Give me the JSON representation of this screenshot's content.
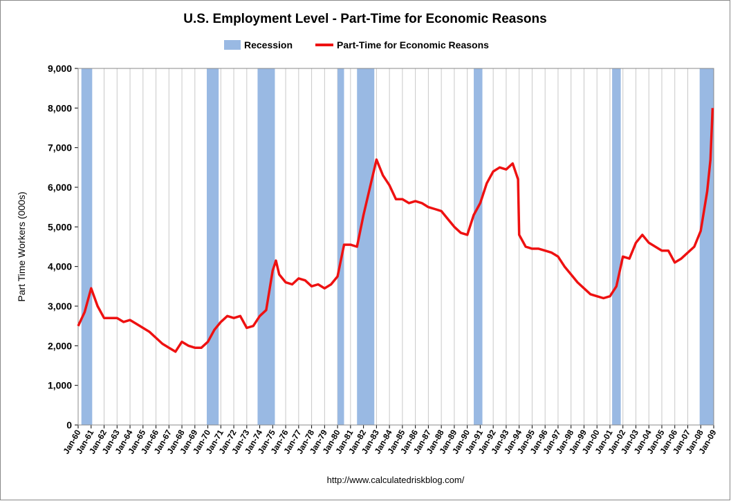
{
  "chart_data": {
    "type": "line",
    "title": "U.S. Employment Level - Part-Time for Economic Reasons",
    "y_label": "Part Time Workers (000s)",
    "source": "http://www.calculatedriskblog.com/",
    "recession_name": "Recession",
    "recession_color": "#99b9e3",
    "recessions": [
      {
        "start": "Apr-60",
        "end": "Feb-61"
      },
      {
        "start": "Dec-69",
        "end": "Nov-70"
      },
      {
        "start": "Nov-73",
        "end": "Mar-75"
      },
      {
        "start": "Jan-80",
        "end": "Jul-80"
      },
      {
        "start": "Jul-81",
        "end": "Nov-82"
      },
      {
        "start": "Jul-90",
        "end": "Mar-91"
      },
      {
        "start": "Mar-01",
        "end": "Nov-01"
      },
      {
        "start": "Dec-07",
        "end": "Jan-09"
      }
    ],
    "x": [
      "Jan-60",
      "Jul-60",
      "Jan-61",
      "Jul-61",
      "Jan-62",
      "Jul-62",
      "Jan-63",
      "Jul-63",
      "Jan-64",
      "Jul-64",
      "Jan-65",
      "Jul-65",
      "Jan-66",
      "Jul-66",
      "Jan-67",
      "Jul-67",
      "Jan-68",
      "Jul-68",
      "Jan-69",
      "Jul-69",
      "Jan-70",
      "Jul-70",
      "Jan-71",
      "Jul-71",
      "Jan-72",
      "Jul-72",
      "Jan-73",
      "Jul-73",
      "Jan-74",
      "Jul-74",
      "Jan-75",
      "Apr-75",
      "Jul-75",
      "Jan-76",
      "Jul-76",
      "Jan-77",
      "Jul-77",
      "Jan-78",
      "Jul-78",
      "Jan-79",
      "Jul-79",
      "Jan-80",
      "Jul-80",
      "Jan-81",
      "Jul-81",
      "Jan-82",
      "Jul-82",
      "Jan-83",
      "Jul-83",
      "Jan-84",
      "Jul-84",
      "Jan-85",
      "Jul-85",
      "Jan-86",
      "Jul-86",
      "Jan-87",
      "Jul-87",
      "Jan-88",
      "Jul-88",
      "Jan-89",
      "Jul-89",
      "Jan-90",
      "Jul-90",
      "Jan-91",
      "Jul-91",
      "Jan-92",
      "Jul-92",
      "Jan-93",
      "Jul-93",
      "Dec-93",
      "Jan-94",
      "Jul-94",
      "Jan-95",
      "Jul-95",
      "Jan-96",
      "Jul-96",
      "Jan-97",
      "Jul-97",
      "Jan-98",
      "Jul-98",
      "Jan-99",
      "Jul-99",
      "Jan-00",
      "Jul-00",
      "Jan-01",
      "Jul-01",
      "Jan-02",
      "Jul-02",
      "Jan-03",
      "Jul-03",
      "Jan-04",
      "Jul-04",
      "Jan-05",
      "Jul-05",
      "Jan-06",
      "Jul-06",
      "Jan-07",
      "Jul-07",
      "Jan-08",
      "Jul-08",
      "Oct-08",
      "Dec-08"
    ],
    "series": [
      {
        "name": "Part-Time for Economic Reasons",
        "color": "#ee1111",
        "values": [
          2500,
          2850,
          3450,
          3000,
          2700,
          2700,
          2700,
          2600,
          2650,
          2550,
          2450,
          2350,
          2200,
          2050,
          1950,
          1850,
          2100,
          2000,
          1950,
          1950,
          2100,
          2400,
          2600,
          2750,
          2700,
          2750,
          2450,
          2500,
          2750,
          2900,
          3900,
          4150,
          3800,
          3600,
          3550,
          3700,
          3650,
          3500,
          3550,
          3450,
          3550,
          3750,
          4550,
          4550,
          4500,
          5300,
          6000,
          6700,
          6300,
          6050,
          5700,
          5700,
          5600,
          5650,
          5600,
          5500,
          5450,
          5400,
          5200,
          5000,
          4850,
          4800,
          5300,
          5600,
          6100,
          6400,
          6500,
          6450,
          6600,
          6200,
          4800,
          4500,
          4450,
          4450,
          4400,
          4350,
          4250,
          4000,
          3800,
          3600,
          3450,
          3300,
          3250,
          3200,
          3250,
          3500,
          4250,
          4200,
          4600,
          4800,
          4600,
          4500,
          4400,
          4400,
          4100,
          4200,
          4350,
          4500,
          4900,
          5900,
          6700,
          8000
        ]
      }
    ],
    "xticks": [
      "Jan-60",
      "Jan-61",
      "Jan-62",
      "Jan-63",
      "Jan-64",
      "Jan-65",
      "Jan-66",
      "Jan-67",
      "Jan-68",
      "Jan-69",
      "Jan-70",
      "Jan-71",
      "Jan-72",
      "Jan-73",
      "Jan-74",
      "Jan-75",
      "Jan-76",
      "Jan-77",
      "Jan-78",
      "Jan-79",
      "Jan-80",
      "Jan-81",
      "Jan-82",
      "Jan-83",
      "Jan-84",
      "Jan-85",
      "Jan-86",
      "Jan-87",
      "Jan-88",
      "Jan-89",
      "Jan-90",
      "Jan-91",
      "Jan-92",
      "Jan-93",
      "Jan-94",
      "Jan-95",
      "Jan-96",
      "Jan-97",
      "Jan-98",
      "Jan-99",
      "Jan-00",
      "Jan-01",
      "Jan-02",
      "Jan-03",
      "Jan-04",
      "Jan-05",
      "Jan-06",
      "Jan-07",
      "Jan-08",
      "Jan-09"
    ],
    "ylim": [
      0,
      9000
    ],
    "yticks": [
      0,
      {
        "value": 1000,
        "label": "1,000"
      },
      {
        "value": 2000,
        "label": "2,000"
      },
      {
        "value": 3000,
        "label": "3,000"
      },
      {
        "value": 4000,
        "label": "4,000"
      },
      {
        "value": 5000,
        "label": "5,000"
      },
      {
        "value": 6000,
        "label": "6,000"
      },
      {
        "value": 7000,
        "label": "7,000"
      },
      {
        "value": 8000,
        "label": "8,000"
      },
      {
        "value": 9000,
        "label": "9,000"
      }
    ],
    "grid": true
  }
}
